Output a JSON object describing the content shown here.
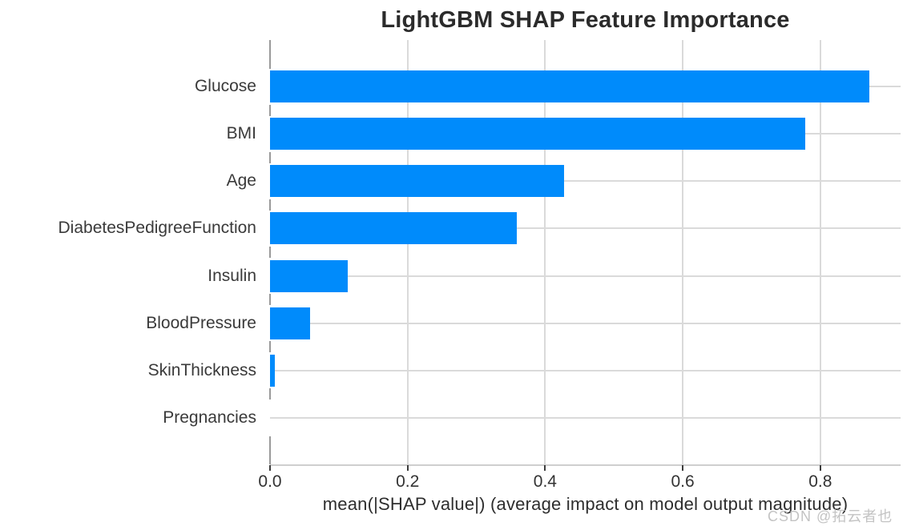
{
  "chart_data": {
    "type": "bar",
    "orientation": "horizontal",
    "title": "LightGBM SHAP Feature Importance",
    "xlabel": "mean(|SHAP value|) (average impact on model output magnitude)",
    "ylabel": "",
    "categories": [
      "Glucose",
      "BMI",
      "Age",
      "DiabetesPedigreeFunction",
      "Insulin",
      "BloodPressure",
      "SkinThickness",
      "Pregnancies"
    ],
    "values": [
      0.871,
      0.778,
      0.427,
      0.359,
      0.113,
      0.058,
      0.007,
      0.0
    ],
    "xticks": [
      0.0,
      0.2,
      0.4,
      0.6,
      0.8
    ],
    "xtick_labels": [
      "0.0",
      "0.2",
      "0.4",
      "0.6",
      "0.8"
    ],
    "xlim": [
      0,
      0.916
    ],
    "grid": true,
    "legend": "none",
    "bar_color": "#008bfb",
    "gridline_color": "#dadada",
    "axis_line_color": "#cfcfcf",
    "spine_dash_color": "#9a9a9a",
    "tick_mark_color": "#3c3c3c",
    "title_color": "#2b2b2b",
    "label_color": "#3a3a3a"
  },
  "watermark": {
    "text": "CSDN @拓云者也"
  }
}
